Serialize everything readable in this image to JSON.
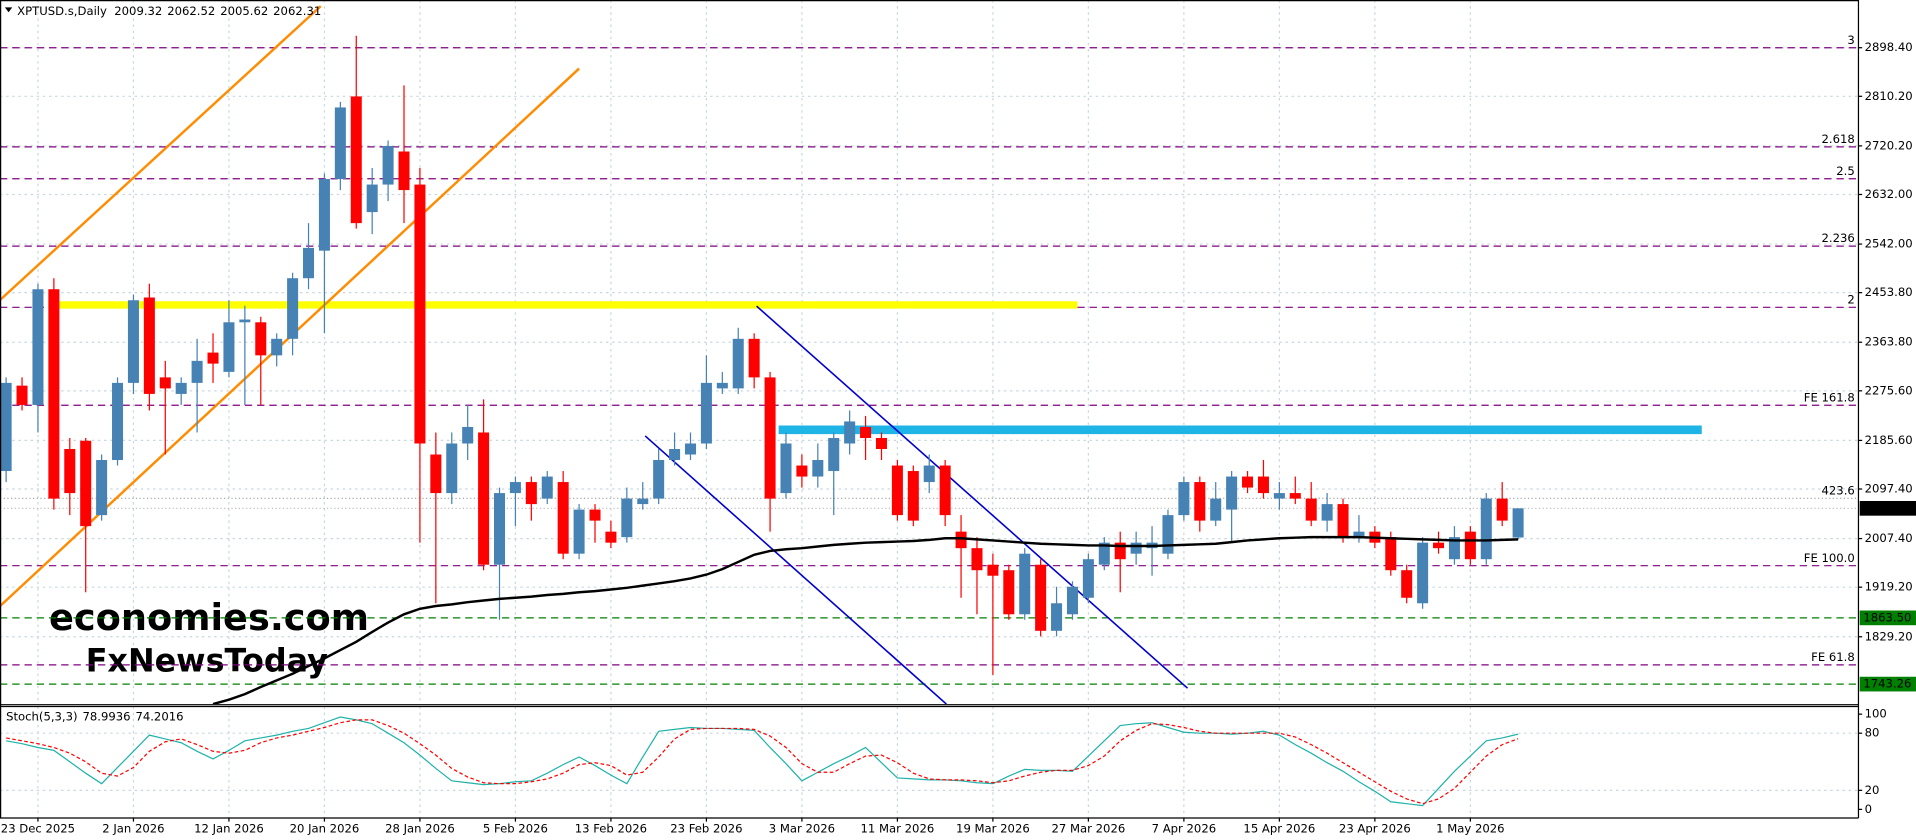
{
  "chart_data": {
    "type": "candlestick",
    "title": "XPTUSD.s,Daily",
    "categories": [
      null,
      null,
      "23 Dec 2025",
      null,
      null,
      null,
      null,
      null,
      "2 Jan 2026",
      null,
      null,
      null,
      null,
      null,
      "12 Jan 2026",
      null,
      null,
      null,
      null,
      null,
      "20 Jan 2026",
      null,
      null,
      null,
      null,
      null,
      "28 Jan 2026",
      null,
      null,
      null,
      null,
      null,
      "5 Feb 2026",
      null,
      null,
      null,
      null,
      null,
      "13 Feb 2026",
      null,
      null,
      null,
      null,
      null,
      "23 Feb 2026",
      null,
      null,
      null,
      null,
      null,
      "3 Mar 2026",
      null,
      null,
      null,
      null,
      null,
      "11 Mar 2026",
      null,
      null,
      null,
      null,
      null,
      "19 Mar 2026",
      null,
      null,
      null,
      null,
      null,
      "27 Mar 2026",
      null,
      null,
      null,
      null,
      null,
      "7 Apr 2026",
      null,
      null,
      null,
      null,
      null,
      "15 Apr 2026",
      null,
      null,
      null,
      null,
      null,
      "23 Apr 2026",
      null,
      null,
      null,
      null,
      null,
      "1 May 2026",
      null,
      null,
      null
    ],
    "open": [
      2130,
      2285,
      2250,
      2460,
      2170,
      2185,
      2050,
      2150,
      2290,
      2445,
      2300,
      2270,
      2290,
      2345,
      2310,
      2400,
      2400,
      2340,
      2370,
      2480,
      2530,
      2660,
      2810,
      2600,
      2650,
      2710,
      2650,
      2160,
      2090,
      2180,
      2200,
      1960,
      2090,
      2110,
      2080,
      2110,
      1980,
      2060,
      2020,
      2010,
      2070,
      2080,
      2150,
      2160,
      2180,
      2280,
      2280,
      2370,
      2300,
      2090,
      2140,
      2120,
      2130,
      2180,
      2210,
      2190,
      2140,
      2130,
      2110,
      2140,
      2020,
      1990,
      1960,
      1950,
      1870,
      1960,
      1840,
      1870,
      1900,
      1960,
      2000,
      1980,
      1990,
      1980,
      2050,
      2110,
      2040,
      2060,
      2120,
      2120,
      2080,
      2090,
      2080,
      2040,
      2070,
      2010,
      2020,
      2010,
      1950,
      1890,
      2000,
      1970,
      2020,
      1970,
      2080,
      2009.32
    ],
    "high": [
      2300,
      2300,
      2470,
      2480,
      2190,
      2190,
      2160,
      2300,
      2450,
      2470,
      2330,
      2300,
      2370,
      2380,
      2440,
      2430,
      2410,
      2380,
      2490,
      2580,
      2670,
      2800,
      2920,
      2680,
      2730,
      2830,
      2680,
      2200,
      2200,
      2250,
      2260,
      2100,
      2120,
      2120,
      2130,
      2130,
      2070,
      2070,
      2040,
      2100,
      2110,
      2170,
      2200,
      2200,
      2340,
      2310,
      2390,
      2380,
      2310,
      2200,
      2160,
      2180,
      2200,
      2240,
      2230,
      2200,
      2150,
      2140,
      2160,
      2150,
      2050,
      2010,
      1980,
      1960,
      1990,
      1970,
      1920,
      1930,
      1980,
      2010,
      2020,
      2020,
      2030,
      2060,
      2120,
      2120,
      2110,
      2130,
      2130,
      2150,
      2110,
      2120,
      2110,
      2090,
      2080,
      2050,
      2030,
      2020,
      1960,
      2010,
      2020,
      2030,
      2030,
      2090,
      2110,
      2062.52
    ],
    "low": [
      2110,
      2240,
      2200,
      2060,
      2050,
      1910,
      2040,
      2140,
      2270,
      2240,
      2160,
      2250,
      2200,
      2290,
      2300,
      2250,
      2250,
      2320,
      2340,
      2460,
      2380,
      2640,
      2570,
      2560,
      2620,
      2580,
      2000,
      1890,
      2070,
      2150,
      1950,
      1860,
      2030,
      2040,
      2070,
      1970,
      1970,
      2000,
      1990,
      2000,
      2060,
      2070,
      2140,
      2150,
      2170,
      2270,
      2270,
      2280,
      2020,
      2080,
      2100,
      2100,
      2050,
      2160,
      2150,
      2150,
      2040,
      2030,
      2090,
      2030,
      1900,
      1870,
      1760,
      1860,
      1860,
      1830,
      1830,
      1860,
      1890,
      1950,
      1910,
      1960,
      1940,
      1970,
      2040,
      2020,
      2030,
      2000,
      2090,
      2080,
      2060,
      2070,
      2030,
      2020,
      2000,
      2000,
      1990,
      1940,
      1890,
      1880,
      1980,
      1960,
      1960,
      1960,
      2030,
      2005.62
    ],
    "close": [
      2290,
      2250,
      2460,
      2080,
      2090,
      2030,
      2150,
      2290,
      2440,
      2270,
      2280,
      2290,
      2330,
      2325,
      2400,
      2405,
      2340,
      2370,
      2480,
      2535,
      2660,
      2790,
      2580,
      2650,
      2720,
      2640,
      2180,
      2090,
      2180,
      2210,
      1960,
      2090,
      2110,
      2070,
      2120,
      1980,
      2060,
      2040,
      2000,
      2080,
      2080,
      2150,
      2170,
      2180,
      2290,
      2290,
      2370,
      2300,
      2080,
      2180,
      2120,
      2150,
      2190,
      2220,
      2190,
      2170,
      2050,
      2040,
      2140,
      2050,
      1990,
      1950,
      1940,
      1870,
      1980,
      1840,
      1890,
      1920,
      1970,
      2000,
      1970,
      2000,
      2000,
      2050,
      2110,
      2040,
      2080,
      2120,
      2100,
      2090,
      2090,
      2080,
      2040,
      2070,
      2010,
      2020,
      2000,
      1950,
      1900,
      2000,
      1990,
      2010,
      1970,
      2080,
      2040,
      2062.31
    ],
    "colors": {
      "up": "#4682b4",
      "down": "#ff0000"
    },
    "moving_average": {
      "color": "#000000",
      "values": [
        null,
        null,
        null,
        null,
        null,
        null,
        null,
        null,
        null,
        null,
        null,
        null,
        null,
        1707,
        1715,
        1725,
        1738,
        1750,
        1762,
        1776,
        1790,
        1805,
        1820,
        1838,
        1855,
        1870,
        1880,
        1885,
        1888,
        1892,
        1895,
        1898,
        1900,
        1902,
        1905,
        1907,
        1910,
        1912,
        1915,
        1918,
        1922,
        1926,
        1930,
        1935,
        1942,
        1952,
        1965,
        1978,
        1985,
        1988,
        1990,
        1993,
        1996,
        1998,
        2000,
        2001,
        2002,
        2003,
        2005,
        2008,
        2008,
        2006,
        2004,
        2002,
        2000,
        1998,
        1997,
        1996,
        1995,
        1995,
        1994,
        1994,
        1994,
        1995,
        1996,
        1997,
        1998,
        2001,
        2004,
        2006,
        2008,
        2009,
        2010,
        2010,
        2010,
        2010,
        2009,
        2008,
        2007,
        2006,
        2005,
        2004,
        2004,
        2004,
        2005,
        2006
      ]
    },
    "ylim": [
      1707,
      2985
    ],
    "yticks": [
      {
        "value": 2898.4,
        "label": "2898.40"
      },
      {
        "value": 2810.2,
        "label": "2810.20"
      },
      {
        "value": 2720.2,
        "label": "2720.20"
      },
      {
        "value": 2632,
        "label": "2632.00"
      },
      {
        "value": 2542,
        "label": "2542.00"
      },
      {
        "value": 2453.8,
        "label": "2453.80"
      },
      {
        "value": 2363.8,
        "label": "2363.80"
      },
      {
        "value": 2275.6,
        "label": "2275.60"
      },
      {
        "value": 2185.6,
        "label": "2185.60"
      },
      {
        "value": 2097.4,
        "label": "2097.40"
      },
      {
        "value": 2007.4,
        "label": "2007.40"
      },
      {
        "value": 1919.2,
        "label": "1919.20"
      },
      {
        "value": 1829.2,
        "label": "1829.20"
      }
    ],
    "grid": true,
    "levels": [
      {
        "value": 2898.4,
        "label": "3",
        "color": "#800080",
        "style": "dashed"
      },
      {
        "value": 2718.4,
        "label": "2.618",
        "color": "#800080",
        "style": "dashed"
      },
      {
        "value": 2660.6,
        "label": "2.5",
        "color": "#800080",
        "style": "dashed"
      },
      {
        "value": 2538.3,
        "label": "2.236",
        "color": "#800080",
        "style": "dashed"
      },
      {
        "value": 2427.2,
        "label": "2",
        "color": "#800080",
        "style": "dashed"
      },
      {
        "value": 2249.4,
        "label": "FE 161.8",
        "color": "#800080",
        "style": "dashed"
      },
      {
        "value": 2080.5,
        "label": "423.6",
        "color": "#a0a0a0",
        "style": "dotted"
      },
      {
        "value": 1958.2,
        "label": "FE 100.0",
        "color": "#800080",
        "style": "dashed"
      },
      {
        "value": 1778.2,
        "label": "FE 61.8",
        "color": "#800080",
        "style": "dashed"
      },
      {
        "value": 1863.5,
        "label": "1863.50",
        "color": "#008000",
        "style": "box"
      },
      {
        "value": 1743.26,
        "label": "1743.26",
        "color": "#008000",
        "style": "box"
      }
    ],
    "watermarks": [
      "economies.com",
      "FxNewsToday"
    ],
    "indicator": {
      "title": "Stoch(5,3,3)",
      "ylim": [
        -9,
        108
      ],
      "yticks": [
        100,
        80,
        20,
        0
      ],
      "series": [
        {
          "color": "#20b2aa",
          "style": "solid",
          "values": [
            72,
            69,
            65,
            62,
            50,
            38,
            27,
            44,
            61,
            78,
            74,
            70,
            61,
            53,
            62,
            72,
            75,
            78,
            82,
            85,
            91,
            97,
            94,
            90,
            80,
            70,
            57,
            43,
            30,
            28,
            26,
            27,
            29,
            30,
            38,
            47,
            55,
            46,
            36,
            27,
            55,
            82,
            84,
            86,
            85,
            85,
            84,
            83,
            65,
            48,
            30,
            39,
            48,
            56,
            65,
            49,
            33,
            32,
            31,
            31,
            30,
            28,
            27,
            35,
            42,
            41,
            41,
            40,
            56,
            72,
            88,
            90,
            91,
            86,
            81,
            80,
            80,
            79,
            80,
            82,
            78,
            68,
            59,
            49,
            40,
            29,
            19,
            8,
            6,
            4,
            22,
            40,
            56,
            72,
            75,
            78.9936
          ]
        },
        {
          "color": "#ff0000",
          "style": "dashed",
          "values": [
            75,
            72,
            69,
            65,
            59,
            50,
            38,
            35,
            44,
            61,
            71,
            74,
            68,
            61,
            59,
            62,
            70,
            75,
            78,
            82,
            86,
            91,
            94,
            94,
            88,
            80,
            69,
            57,
            43,
            34,
            28,
            27,
            27,
            29,
            32,
            38,
            47,
            49,
            46,
            36,
            39,
            55,
            74,
            84,
            85,
            85,
            85,
            84,
            77,
            65,
            48,
            39,
            39,
            48,
            56,
            57,
            49,
            38,
            32,
            31,
            31,
            30,
            28,
            30,
            35,
            39,
            41,
            41,
            46,
            56,
            72,
            83,
            90,
            89,
            86,
            82,
            80,
            80,
            80,
            80,
            80,
            76,
            68,
            59,
            49,
            39,
            29,
            19,
            11,
            6,
            11,
            22,
            39,
            56,
            68,
            74.2016
          ]
        }
      ]
    }
  }
}
